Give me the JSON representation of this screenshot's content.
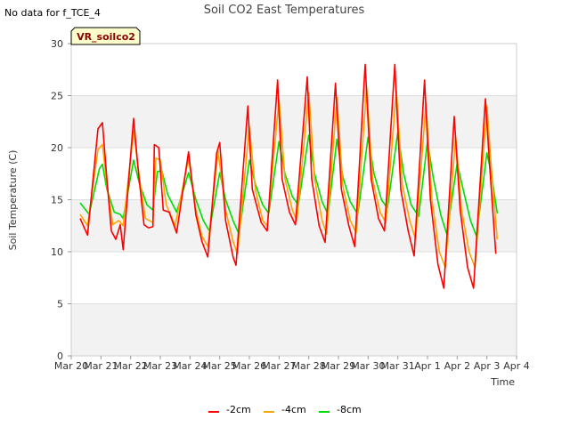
{
  "no_data_note": "No data for f_TCE_4",
  "chart_data": {
    "type": "line",
    "title": "Soil CO2 East Temperatures",
    "xlabel": "Time",
    "ylabel": "Soil Temperature (C)",
    "ylim": [
      0,
      30
    ],
    "yticks": [
      0,
      5,
      10,
      15,
      20,
      25,
      30
    ],
    "xlim": [
      0,
      15
    ],
    "xticks": [
      0,
      1,
      2,
      3,
      4,
      5,
      6,
      7,
      8,
      9,
      10,
      11,
      12,
      13,
      14,
      15
    ],
    "xtick_labels": [
      "Mar 20",
      "Mar 21",
      "Mar 22",
      "Mar 23",
      "Mar 24",
      "Mar 25",
      "Mar 26",
      "Mar 27",
      "Mar 28",
      "Mar 29",
      "Mar 30",
      "Mar 31",
      "Apr 1",
      "Apr 2",
      "Apr 3",
      "Apr 4"
    ],
    "grid": true,
    "legend_position": "bottom",
    "annotation_box": {
      "text": "VR_soilco2",
      "text_color": "#8b0000",
      "fill": "#ffffcc"
    },
    "series": [
      {
        "name": "-2cm",
        "color": "#ff0000",
        "values": [
          [
            0.3,
            13.2
          ],
          [
            0.55,
            11.6
          ],
          [
            0.9,
            21.8
          ],
          [
            1.05,
            22.4
          ],
          [
            1.2,
            17
          ],
          [
            1.35,
            12
          ],
          [
            1.5,
            11.2
          ],
          [
            1.65,
            12.6
          ],
          [
            1.75,
            10.2
          ],
          [
            2.1,
            22.8
          ],
          [
            2.25,
            18
          ],
          [
            2.45,
            12.6
          ],
          [
            2.6,
            12.3
          ],
          [
            2.75,
            12.4
          ],
          [
            2.8,
            20.3
          ],
          [
            2.95,
            20
          ],
          [
            3.1,
            14
          ],
          [
            3.3,
            13.8
          ],
          [
            3.55,
            11.8
          ],
          [
            3.95,
            19.6
          ],
          [
            4.2,
            13.5
          ],
          [
            4.4,
            11
          ],
          [
            4.6,
            9.5
          ],
          [
            4.9,
            19.5
          ],
          [
            5.0,
            20.5
          ],
          [
            5.2,
            13
          ],
          [
            5.45,
            9.5
          ],
          [
            5.55,
            8.7
          ],
          [
            5.95,
            24
          ],
          [
            6.1,
            16
          ],
          [
            6.4,
            12.8
          ],
          [
            6.6,
            12
          ],
          [
            6.95,
            26.5
          ],
          [
            7.1,
            17
          ],
          [
            7.35,
            13.8
          ],
          [
            7.55,
            12.6
          ],
          [
            7.95,
            26.8
          ],
          [
            8.1,
            17
          ],
          [
            8.35,
            12.5
          ],
          [
            8.55,
            10.9
          ],
          [
            8.9,
            26.2
          ],
          [
            9.1,
            16
          ],
          [
            9.35,
            12.5
          ],
          [
            9.55,
            10.5
          ],
          [
            9.9,
            28
          ],
          [
            10.1,
            17
          ],
          [
            10.35,
            13.2
          ],
          [
            10.55,
            12
          ],
          [
            10.9,
            28
          ],
          [
            11.1,
            16
          ],
          [
            11.35,
            12
          ],
          [
            11.55,
            9.6
          ],
          [
            11.9,
            26.5
          ],
          [
            12.1,
            15
          ],
          [
            12.35,
            8.8
          ],
          [
            12.55,
            6.5
          ],
          [
            12.9,
            23
          ],
          [
            13.1,
            14
          ],
          [
            13.35,
            8.5
          ],
          [
            13.55,
            6.5
          ],
          [
            13.95,
            24.7
          ],
          [
            14.1,
            18
          ],
          [
            14.3,
            9.8
          ]
        ]
      },
      {
        "name": "-4cm",
        "color": "#ffa500",
        "values": [
          [
            0.3,
            13.6
          ],
          [
            0.55,
            12.5
          ],
          [
            0.9,
            19.8
          ],
          [
            1.05,
            20.3
          ],
          [
            1.2,
            16.5
          ],
          [
            1.4,
            12.6
          ],
          [
            1.6,
            13
          ],
          [
            1.75,
            12.5
          ],
          [
            2.1,
            21.6
          ],
          [
            2.3,
            17
          ],
          [
            2.5,
            13.2
          ],
          [
            2.75,
            12.8
          ],
          [
            2.85,
            19
          ],
          [
            3.0,
            18.8
          ],
          [
            3.2,
            14.5
          ],
          [
            3.5,
            12.5
          ],
          [
            3.95,
            19
          ],
          [
            4.2,
            14
          ],
          [
            4.4,
            11.5
          ],
          [
            4.6,
            10.5
          ],
          [
            4.95,
            19.6
          ],
          [
            5.2,
            14
          ],
          [
            5.45,
            11
          ],
          [
            5.6,
            9.8
          ],
          [
            6.0,
            22
          ],
          [
            6.2,
            16
          ],
          [
            6.45,
            13
          ],
          [
            6.6,
            12.5
          ],
          [
            7.0,
            24.6
          ],
          [
            7.2,
            17
          ],
          [
            7.45,
            14
          ],
          [
            7.6,
            13
          ],
          [
            8.0,
            25.3
          ],
          [
            8.2,
            17
          ],
          [
            8.45,
            13
          ],
          [
            8.6,
            11.7
          ],
          [
            8.95,
            24.8
          ],
          [
            9.15,
            16.3
          ],
          [
            9.4,
            13
          ],
          [
            9.6,
            11.8
          ],
          [
            9.95,
            25.8
          ],
          [
            10.15,
            17
          ],
          [
            10.4,
            13.8
          ],
          [
            10.6,
            12.8
          ],
          [
            10.95,
            25.5
          ],
          [
            11.15,
            16.5
          ],
          [
            11.4,
            13
          ],
          [
            11.6,
            11.2
          ],
          [
            11.95,
            24.3
          ],
          [
            12.15,
            15
          ],
          [
            12.4,
            10
          ],
          [
            12.6,
            8.5
          ],
          [
            12.95,
            21
          ],
          [
            13.15,
            14
          ],
          [
            13.4,
            10
          ],
          [
            13.6,
            8.5
          ],
          [
            14.0,
            24
          ],
          [
            14.15,
            18
          ],
          [
            14.35,
            11.2
          ]
        ]
      },
      {
        "name": "-8cm",
        "color": "#00dd00",
        "values": [
          [
            0.3,
            14.7
          ],
          [
            0.6,
            13.6
          ],
          [
            0.95,
            18
          ],
          [
            1.05,
            18.4
          ],
          [
            1.2,
            16
          ],
          [
            1.45,
            13.8
          ],
          [
            1.65,
            13.6
          ],
          [
            1.75,
            13.2
          ],
          [
            2.1,
            18.8
          ],
          [
            2.3,
            16.5
          ],
          [
            2.55,
            14.5
          ],
          [
            2.75,
            14
          ],
          [
            2.9,
            17.7
          ],
          [
            3.05,
            17.8
          ],
          [
            3.25,
            15.5
          ],
          [
            3.55,
            13.8
          ],
          [
            3.95,
            17.6
          ],
          [
            4.2,
            15
          ],
          [
            4.45,
            13
          ],
          [
            4.65,
            12
          ],
          [
            5.0,
            17.6
          ],
          [
            5.2,
            15
          ],
          [
            5.45,
            13
          ],
          [
            5.65,
            11.7
          ],
          [
            6.0,
            18.8
          ],
          [
            6.2,
            16.5
          ],
          [
            6.45,
            14.5
          ],
          [
            6.65,
            13.7
          ],
          [
            7.0,
            20.6
          ],
          [
            7.2,
            17.5
          ],
          [
            7.45,
            15.3
          ],
          [
            7.65,
            14.5
          ],
          [
            8.0,
            21.2
          ],
          [
            8.2,
            17.5
          ],
          [
            8.45,
            14.8
          ],
          [
            8.65,
            13.6
          ],
          [
            8.95,
            20.8
          ],
          [
            9.15,
            17.2
          ],
          [
            9.4,
            14.8
          ],
          [
            9.65,
            13.6
          ],
          [
            10.0,
            21
          ],
          [
            10.2,
            17.5
          ],
          [
            10.45,
            15
          ],
          [
            10.65,
            14.2
          ],
          [
            11.0,
            21.5
          ],
          [
            11.2,
            17.5
          ],
          [
            11.45,
            14.5
          ],
          [
            11.7,
            13.4
          ],
          [
            12.0,
            20.6
          ],
          [
            12.2,
            17
          ],
          [
            12.45,
            13.5
          ],
          [
            12.65,
            11.7
          ],
          [
            13.0,
            18.5
          ],
          [
            13.2,
            16
          ],
          [
            13.45,
            13
          ],
          [
            13.65,
            11.5
          ],
          [
            14.0,
            19.5
          ],
          [
            14.15,
            17.5
          ],
          [
            14.35,
            13.7
          ]
        ]
      }
    ]
  }
}
